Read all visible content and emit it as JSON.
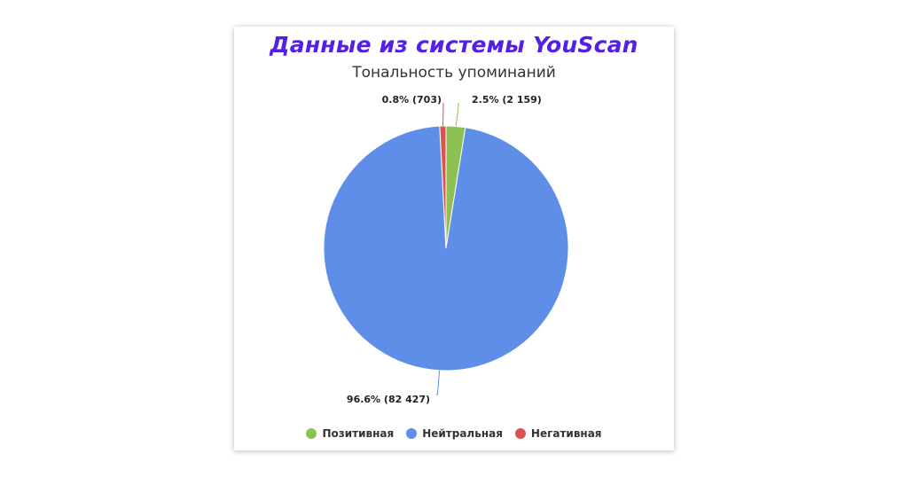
{
  "chart_data": {
    "type": "pie",
    "title": "Данные из системы YouScan",
    "subtitle": "Тональность упоминаний",
    "legend_position": "bottom",
    "slices": [
      {
        "name": "Позитивная",
        "percent": 2.5,
        "value": 2159,
        "label": "2.5% (2 159)",
        "color": "#8dc153"
      },
      {
        "name": "Нейтральная",
        "percent": 96.6,
        "value": 82427,
        "label": "96.6% (82 427)",
        "color": "#5f8ee9"
      },
      {
        "name": "Негативная",
        "percent": 0.8,
        "value": 703,
        "label": "0.8% (703)",
        "color": "#d9534f"
      }
    ]
  }
}
